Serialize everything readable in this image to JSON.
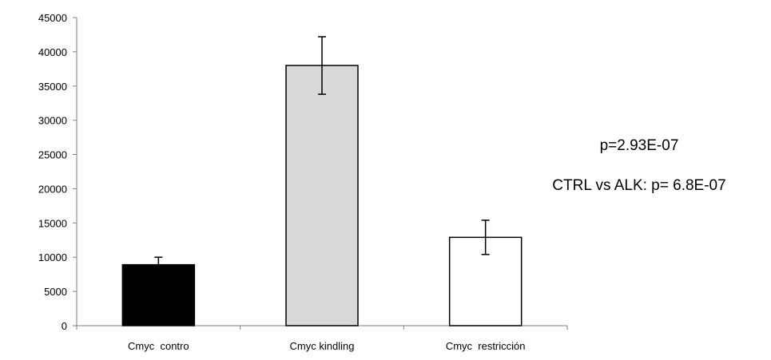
{
  "chart_data": {
    "type": "bar",
    "categories": [
      "Cmyc  contro",
      "Cmyc kindling",
      "Cmyc  restricción"
    ],
    "values": [
      8900,
      38000,
      12900
    ],
    "errors": [
      1100,
      4200,
      2500
    ],
    "bar_fills": [
      "#000000",
      "#d9d9d9",
      "#ffffff"
    ],
    "bar_stroke": "#000000",
    "ylim": [
      0,
      45000
    ],
    "yticks": [
      0,
      5000,
      10000,
      15000,
      20000,
      25000,
      30000,
      35000,
      40000,
      45000
    ],
    "ytick_labels": [
      "0",
      "5000",
      "10000",
      "15000",
      "20000",
      "25000",
      "30000",
      "35000",
      "40000",
      "45000"
    ],
    "grid": false,
    "legend": "none",
    "xlabel": "",
    "ylabel": "",
    "annotations": [
      "p=2.93E-07",
      "CTRL vs ALK: p= 6.8E-07"
    ]
  }
}
